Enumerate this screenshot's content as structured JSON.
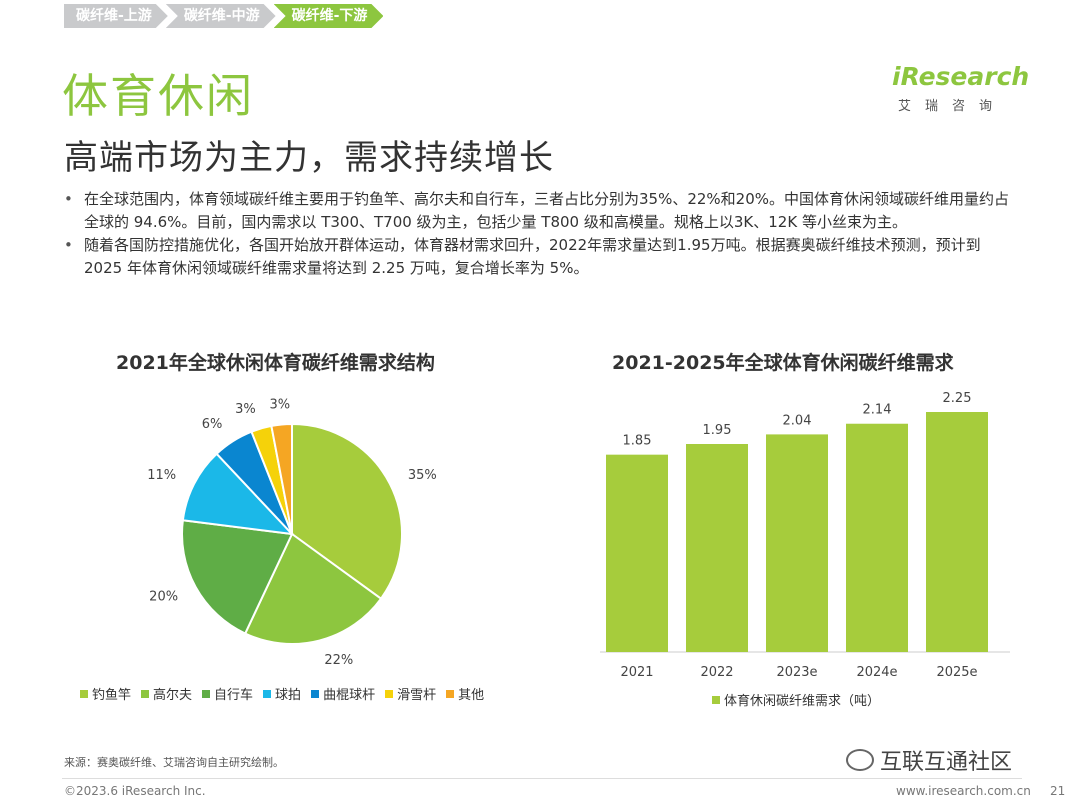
{
  "breadcrumb": [
    "碳纤维-上游",
    "碳纤维-中游",
    "碳纤维-下游"
  ],
  "title": "体育休闲",
  "subtitle": "高端市场为主力，需求持续增长",
  "logo": {
    "main": "iResearch",
    "sub": "艾瑞咨询"
  },
  "bullets": [
    "在全球范围内，体育领域碳纤维主要用于钓鱼竿、高尔夫和自行车，三者占比分别为35%、22%和20%。中国体育休闲领域碳纤维用量约占全球的 94.6%。目前，国内需求以 T300、T700 级为主，包括少量 T800 级和高模量。规格上以3K、12K 等小丝束为主。",
    "随着各国防控措施优化，各国开始放开群体运动，体育器材需求回升，2022年需求量达到1.95万吨。根据赛奥碳纤维技术预测，预计到 2025 年体育休闲领域碳纤维需求量将达到 2.25 万吨，复合增长率为 5%。"
  ],
  "chart_data": [
    {
      "type": "pie",
      "title": "2021年全球休闲体育碳纤维需求结构",
      "categories": [
        "钓鱼竿",
        "高尔夫",
        "自行车",
        "球拍",
        "曲棍球杆",
        "滑雪杆",
        "其他"
      ],
      "values": [
        35,
        22,
        20,
        11,
        6,
        3,
        3
      ],
      "labels": [
        "35%",
        "22%",
        "20%",
        "11%",
        "6%",
        "3%",
        "3%"
      ],
      "colors": [
        "#a6cc3c",
        "#8dc63f",
        "#5fad46",
        "#1bb8e8",
        "#0a86d0",
        "#f5d20a",
        "#f5a623"
      ],
      "legend": "bottom"
    },
    {
      "type": "bar",
      "title": "2021-2025年全球体育休闲碳纤维需求",
      "categories": [
        "2021",
        "2022",
        "2023e",
        "2024e",
        "2025e"
      ],
      "series": [
        {
          "name": "体育休闲碳纤维需求（吨）",
          "values": [
            1.85,
            1.95,
            2.04,
            2.14,
            2.25
          ]
        }
      ],
      "labels": [
        "1.85",
        "1.95",
        "2.04",
        "2.14",
        "2.25"
      ],
      "color": "#a6cc3c",
      "ylim": [
        0,
        2.4
      ],
      "legend": "bottom"
    }
  ],
  "source": "来源：赛奥碳纤维、艾瑞咨询自主研究绘制。",
  "copyright": "©2023.6 iResearch Inc.",
  "site": "www.iresearch.com.cn",
  "page": "21",
  "watermark": "互联互通社区"
}
